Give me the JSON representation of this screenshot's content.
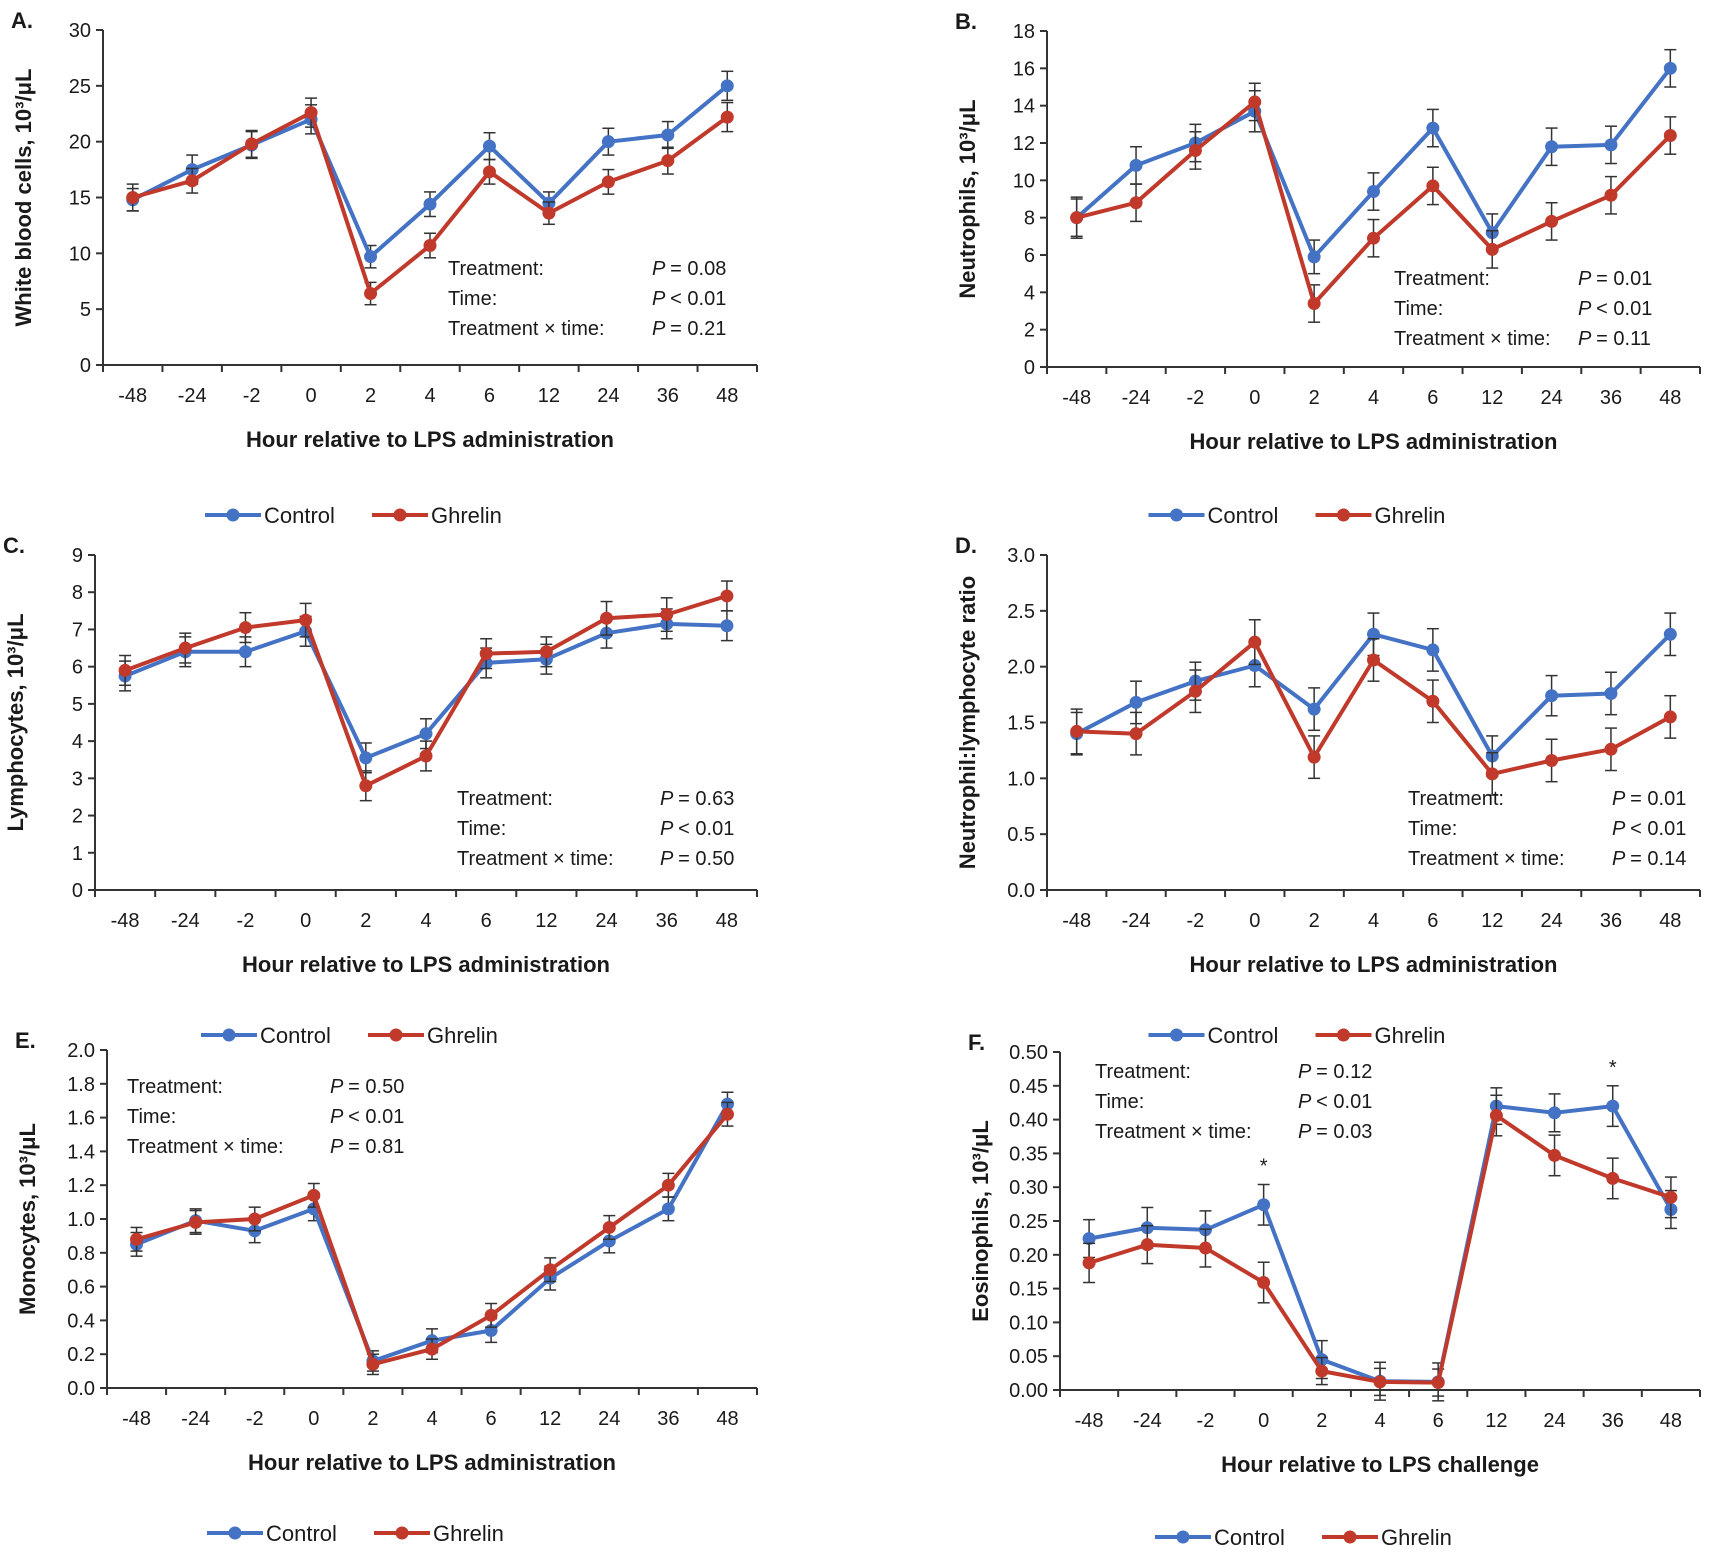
{
  "colors": {
    "control": "#4472C4",
    "ghrelin": "#C0392B",
    "axis": "#333333"
  },
  "legend": {
    "control": "Control",
    "ghrelin": "Ghrelin"
  },
  "chart_data": [
    {
      "type": "line",
      "label": "A.",
      "title": "",
      "xlabel": "Hour relative to LPS administration",
      "ylabel": "White blood cells, 10³/μL",
      "categories": [
        "-48",
        "-24",
        "-2",
        "0",
        "2",
        "4",
        "6",
        "12",
        "24",
        "36",
        "48"
      ],
      "ylim": [
        0,
        30
      ],
      "yticks": [
        "0",
        "5",
        "10",
        "15",
        "20",
        "25",
        "30"
      ],
      "series": [
        {
          "name": "Control",
          "values": [
            14.8,
            17.5,
            19.7,
            22.0,
            9.7,
            14.4,
            19.6,
            14.5,
            20.0,
            20.6,
            25.0
          ],
          "errors": [
            1.0,
            1.3,
            1.2,
            1.3,
            1.0,
            1.1,
            1.2,
            1.0,
            1.2,
            1.2,
            1.3
          ]
        },
        {
          "name": "Ghrelin",
          "values": [
            15.0,
            16.5,
            19.8,
            22.6,
            6.4,
            10.7,
            17.3,
            13.6,
            16.4,
            18.3,
            22.2
          ],
          "errors": [
            1.2,
            1.1,
            1.2,
            1.3,
            1.0,
            1.1,
            1.1,
            1.0,
            1.1,
            1.2,
            1.3
          ]
        }
      ],
      "stats": [
        {
          "label": "Treatment:",
          "value": "P = 0.08"
        },
        {
          "label": "Time:",
          "value": "P < 0.01"
        },
        {
          "label": "Treatment × time:",
          "value": "P = 0.21"
        }
      ],
      "annotations": []
    },
    {
      "type": "line",
      "label": "B.",
      "title": "",
      "xlabel": "Hour relative to LPS administration",
      "ylabel": "Neutrophils, 10³/μL",
      "categories": [
        "-48",
        "-24",
        "-2",
        "0",
        "2",
        "4",
        "6",
        "12",
        "24",
        "36",
        "48"
      ],
      "ylim": [
        0,
        18
      ],
      "yticks": [
        "0",
        "2",
        "4",
        "6",
        "8",
        "10",
        "12",
        "14",
        "16",
        "18"
      ],
      "series": [
        {
          "name": "Control",
          "values": [
            8.0,
            10.8,
            12.0,
            13.7,
            5.9,
            9.4,
            12.8,
            7.2,
            11.8,
            11.9,
            16.0
          ],
          "errors": [
            1.1,
            1.0,
            1.0,
            1.1,
            0.9,
            1.0,
            1.0,
            1.0,
            1.0,
            1.0,
            1.0
          ]
        },
        {
          "name": "Ghrelin",
          "values": [
            8.0,
            8.8,
            11.6,
            14.2,
            3.4,
            6.9,
            9.7,
            6.3,
            7.8,
            9.2,
            12.4
          ],
          "errors": [
            1.0,
            1.0,
            1.0,
            1.0,
            1.0,
            1.0,
            1.0,
            1.0,
            1.0,
            1.0,
            1.0
          ]
        }
      ],
      "stats": [
        {
          "label": "Treatment:",
          "value": "P = 0.01"
        },
        {
          "label": "Time:",
          "value": "P < 0.01"
        },
        {
          "label": "Treatment × time:",
          "value": "P = 0.11"
        }
      ],
      "annotations": []
    },
    {
      "type": "line",
      "label": "C.",
      "title": "",
      "xlabel": "Hour relative to LPS administration",
      "ylabel": "Lymphocytes, 10³/μL",
      "categories": [
        "-48",
        "-24",
        "-2",
        "0",
        "2",
        "4",
        "6",
        "12",
        "24",
        "36",
        "48"
      ],
      "ylim": [
        0,
        9
      ],
      "yticks": [
        "0",
        "1",
        "2",
        "3",
        "4",
        "5",
        "6",
        "7",
        "8",
        "9"
      ],
      "series": [
        {
          "name": "Control",
          "values": [
            5.75,
            6.4,
            6.4,
            6.95,
            3.55,
            4.2,
            6.1,
            6.2,
            6.9,
            7.15,
            7.1
          ],
          "errors": [
            0.4,
            0.4,
            0.4,
            0.4,
            0.4,
            0.4,
            0.4,
            0.4,
            0.4,
            0.4,
            0.4
          ]
        },
        {
          "name": "Ghrelin",
          "values": [
            5.9,
            6.5,
            7.05,
            7.25,
            2.8,
            3.6,
            6.35,
            6.4,
            7.3,
            7.4,
            7.9
          ],
          "errors": [
            0.4,
            0.4,
            0.4,
            0.45,
            0.4,
            0.4,
            0.4,
            0.4,
            0.45,
            0.45,
            0.4
          ]
        }
      ],
      "stats": [
        {
          "label": "Treatment:",
          "value": "P = 0.63"
        },
        {
          "label": "Time:",
          "value": "P < 0.01"
        },
        {
          "label": "Treatment × time:",
          "value": "P = 0.50"
        }
      ],
      "annotations": []
    },
    {
      "type": "line",
      "label": "D.",
      "title": "",
      "xlabel": "Hour relative to LPS administration",
      "ylabel": "Neutrophil:lymphocyte ratio",
      "categories": [
        "-48",
        "-24",
        "-2",
        "0",
        "2",
        "4",
        "6",
        "12",
        "24",
        "36",
        "48"
      ],
      "ylim": [
        0,
        3
      ],
      "yticks": [
        "0.0",
        "0.5",
        "1.0",
        "1.5",
        "2.0",
        "2.5",
        "3.0"
      ],
      "series": [
        {
          "name": "Control",
          "values": [
            1.4,
            1.68,
            1.87,
            2.01,
            1.62,
            2.29,
            2.15,
            1.2,
            1.74,
            1.76,
            2.29
          ],
          "errors": [
            0.19,
            0.19,
            0.17,
            0.19,
            0.19,
            0.19,
            0.19,
            0.18,
            0.18,
            0.19,
            0.19
          ]
        },
        {
          "name": "Ghrelin",
          "values": [
            1.42,
            1.4,
            1.78,
            2.22,
            1.19,
            2.06,
            1.69,
            1.04,
            1.16,
            1.26,
            1.55
          ],
          "errors": [
            0.2,
            0.19,
            0.19,
            0.2,
            0.19,
            0.19,
            0.19,
            0.19,
            0.19,
            0.19,
            0.19
          ]
        }
      ],
      "stats": [
        {
          "label": "Treatment:",
          "value": "P = 0.01"
        },
        {
          "label": "Time:",
          "value": "P < 0.01"
        },
        {
          "label": "Treatment × time:",
          "value": "P = 0.14"
        }
      ],
      "annotations": []
    },
    {
      "type": "line",
      "label": "E.",
      "title": "",
      "xlabel": "Hour relative to LPS administration",
      "ylabel": "Monocytes, 10³/μL",
      "categories": [
        "-48",
        "-24",
        "-2",
        "0",
        "2",
        "4",
        "6",
        "12",
        "24",
        "36",
        "48"
      ],
      "ylim": [
        0,
        2
      ],
      "yticks": [
        "0.0",
        "0.2",
        "0.4",
        "0.6",
        "0.8",
        "1.0",
        "1.2",
        "1.4",
        "1.6",
        "1.8",
        "2.0"
      ],
      "series": [
        {
          "name": "Control",
          "values": [
            0.85,
            0.99,
            0.93,
            1.06,
            0.16,
            0.28,
            0.34,
            0.65,
            0.87,
            1.06,
            1.68
          ],
          "errors": [
            0.07,
            0.07,
            0.07,
            0.07,
            0.06,
            0.07,
            0.07,
            0.07,
            0.07,
            0.07,
            0.07
          ]
        },
        {
          "name": "Ghrelin",
          "values": [
            0.88,
            0.98,
            1.0,
            1.14,
            0.14,
            0.23,
            0.43,
            0.7,
            0.95,
            1.2,
            1.62
          ],
          "errors": [
            0.07,
            0.07,
            0.07,
            0.07,
            0.06,
            0.06,
            0.07,
            0.07,
            0.07,
            0.07,
            0.07
          ]
        }
      ],
      "stats": [
        {
          "label": "Treatment:",
          "value": "P = 0.50"
        },
        {
          "label": "Time:",
          "value": "P < 0.01"
        },
        {
          "label": "Treatment × time:",
          "value": "P = 0.81"
        }
      ],
      "annotations": []
    },
    {
      "type": "line",
      "label": "F.",
      "title": "",
      "xlabel": "Hour relative to LPS challenge",
      "ylabel": "Eosinophils, 10³/μL",
      "categories": [
        "-48",
        "-24",
        "-2",
        "0",
        "2",
        "4",
        "6",
        "12",
        "24",
        "36",
        "48"
      ],
      "ylim": [
        0,
        0.5
      ],
      "yticks": [
        "0.00",
        "0.05",
        "0.10",
        "0.15",
        "0.20",
        "0.25",
        "0.30",
        "0.35",
        "0.40",
        "0.45",
        "0.50"
      ],
      "series": [
        {
          "name": "Control",
          "values": [
            0.224,
            0.24,
            0.237,
            0.274,
            0.045,
            0.013,
            0.012,
            0.42,
            0.41,
            0.42,
            0.267
          ],
          "errors": [
            0.028,
            0.03,
            0.028,
            0.03,
            0.028,
            0.028,
            0.028,
            0.027,
            0.028,
            0.03,
            0.028
          ]
        },
        {
          "name": "Ghrelin",
          "values": [
            0.188,
            0.215,
            0.21,
            0.159,
            0.028,
            0.012,
            0.011,
            0.406,
            0.347,
            0.313,
            0.285
          ],
          "errors": [
            0.029,
            0.028,
            0.028,
            0.03,
            0.02,
            0.02,
            0.02,
            0.03,
            0.03,
            0.03,
            0.03
          ]
        }
      ],
      "stats": [
        {
          "label": "Treatment:",
          "value": "P = 0.12"
        },
        {
          "label": "Time:",
          "value": "P < 0.01"
        },
        {
          "label": "Treatment × time:",
          "value": "P = 0.03"
        }
      ],
      "annotations": [
        {
          "category": "0",
          "text": "*"
        },
        {
          "category": "36",
          "text": "*"
        }
      ]
    }
  ]
}
